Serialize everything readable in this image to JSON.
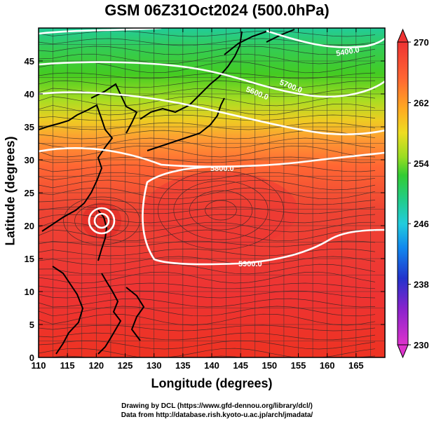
{
  "title": "GSM 06Z31Oct2024 (500.0hPa)",
  "axes": {
    "xlabel": "Longitude (degrees)",
    "ylabel": "Latitude  (degrees)",
    "x_ticks": [
      "110",
      "115",
      "120",
      "125",
      "130",
      "135",
      "140",
      "145",
      "150",
      "155",
      "160",
      "165"
    ],
    "y_ticks": [
      "0",
      "5",
      "10",
      "15",
      "20",
      "25",
      "30",
      "35",
      "40",
      "45"
    ],
    "x_range": [
      110,
      170
    ],
    "y_range": [
      0,
      50
    ]
  },
  "colorbar": {
    "labels": [
      "270",
      "262",
      "254",
      "246",
      "238",
      "230"
    ],
    "range": [
      230,
      270
    ],
    "colors": [
      "#dd33cc",
      "#8822cc",
      "#2233cc",
      "#1188ee",
      "#22ccdd",
      "#22cc88",
      "#33cc33",
      "#99dd22",
      "#eedd22",
      "#ff9922",
      "#ff5522",
      "#ee3333"
    ]
  },
  "contours": {
    "labels": [
      "5400.0",
      "5600.0",
      "5700.0",
      "5800.0",
      "5900.0"
    ]
  },
  "credits": {
    "line1": "Drawing by DCL (https://www.gfd-dennou.org/library/dcl/)",
    "line2": "Data from http://database.rish.kyoto-u.ac.jp/arch/jmadata/"
  }
}
